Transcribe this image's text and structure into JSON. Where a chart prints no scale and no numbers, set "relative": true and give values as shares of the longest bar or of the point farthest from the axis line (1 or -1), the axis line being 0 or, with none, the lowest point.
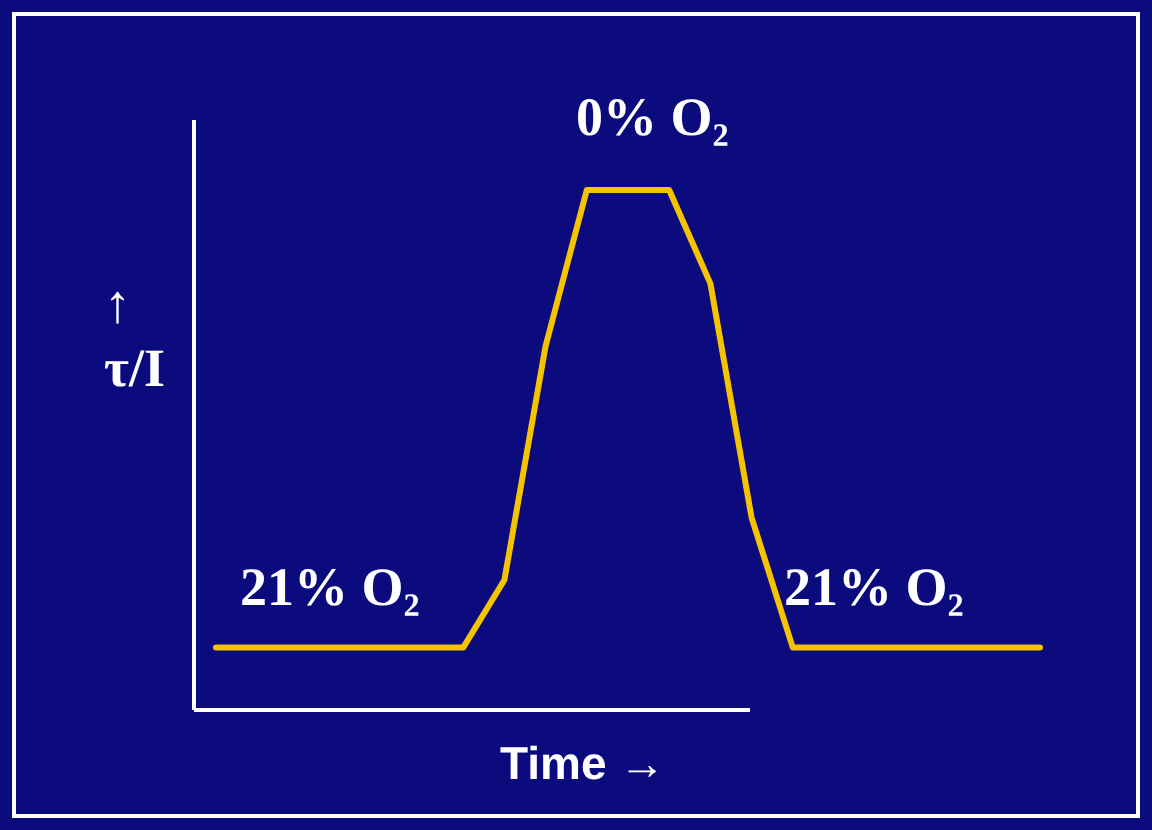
{
  "chart_data": {
    "type": "line",
    "relative": true,
    "xlabel": "Time →",
    "ylabel": "↑\nτ/I",
    "categories": [
      null,
      null,
      null,
      null,
      null,
      null,
      null,
      null,
      null,
      null,
      null,
      null,
      null,
      null,
      null,
      null,
      null,
      null,
      null,
      null,
      null
    ],
    "series": [
      {
        "color": "#f5c400",
        "values": [
          0.12,
          0.12,
          0.12,
          0.12,
          0.12,
          0.12,
          0.12,
          0.25,
          0.7,
          1,
          1,
          1,
          0.82,
          0.37,
          0.12,
          0.12,
          0.12,
          0.12,
          0.12,
          0.12,
          0.12
        ]
      }
    ],
    "annotations": [
      "21% O₂",
      "0% O₂",
      "21% O₂"
    ],
    "grid": false,
    "marker": "none",
    "line_style": "solid"
  }
}
